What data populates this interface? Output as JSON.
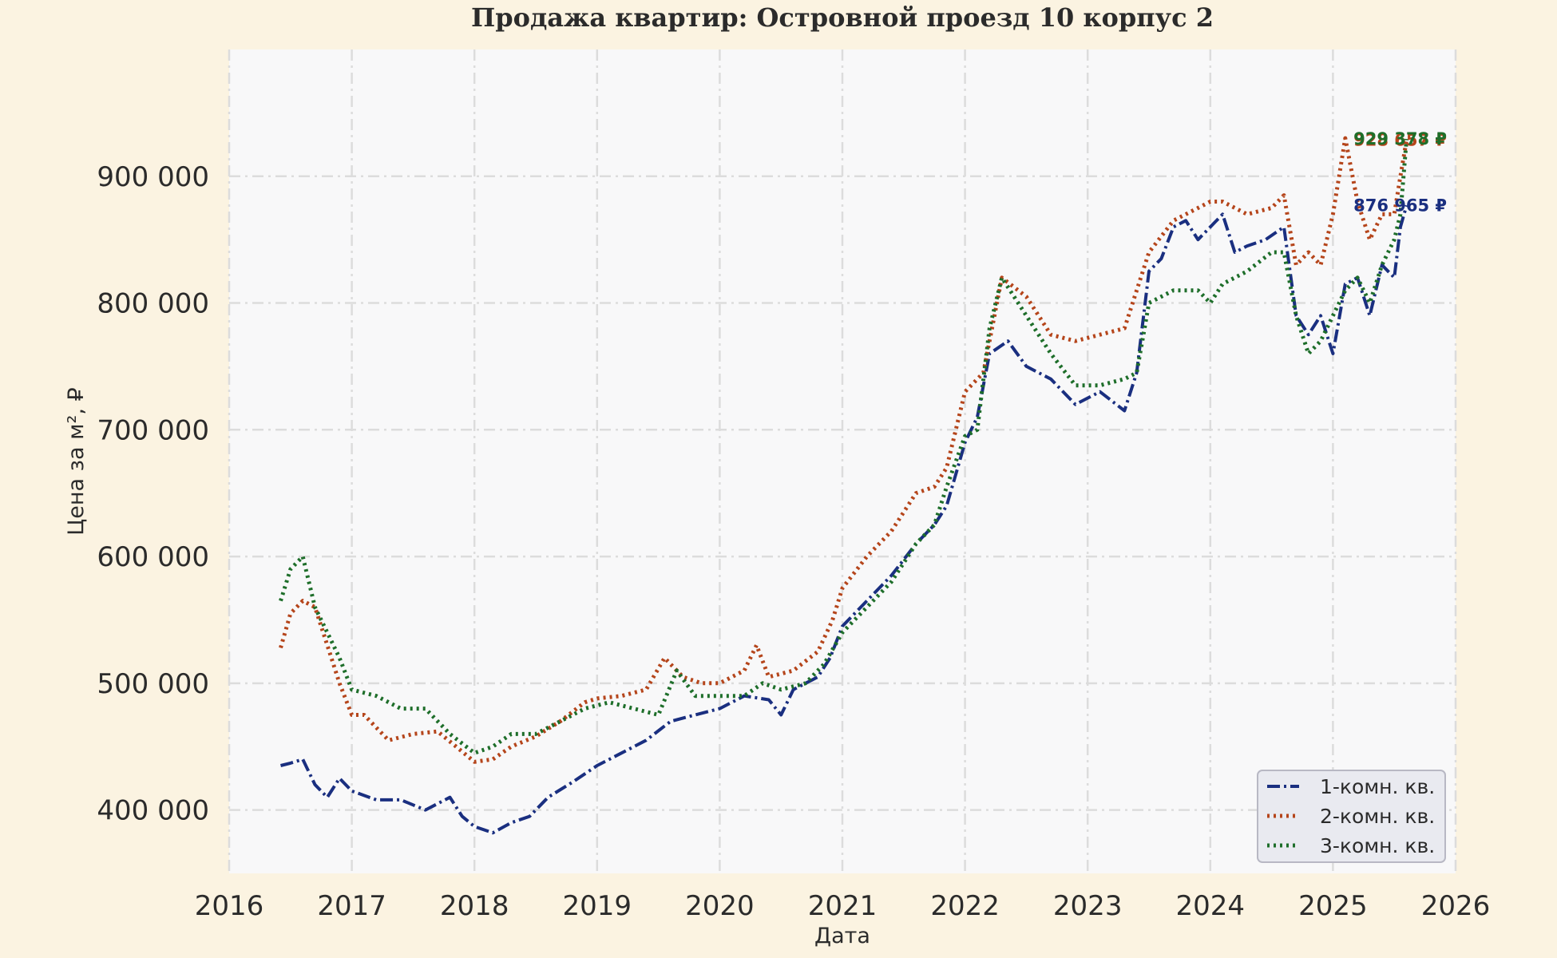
{
  "chart_data": {
    "type": "line",
    "title": "Продажа квартир: Островной проезд 10 корпус 2",
    "xlabel": "Дата",
    "ylabel": "Цена за м², ₽",
    "xlim": [
      2016,
      2026
    ],
    "ylim": [
      350000,
      1000000
    ],
    "x_ticks": [
      2016,
      2017,
      2018,
      2019,
      2020,
      2021,
      2022,
      2023,
      2024,
      2025,
      2026
    ],
    "x_tick_labels": [
      "2016",
      "2017",
      "2018",
      "2019",
      "2020",
      "2021",
      "2022",
      "2023",
      "2024",
      "2025",
      "2026"
    ],
    "y_ticks": [
      400000,
      500000,
      600000,
      700000,
      800000,
      900000
    ],
    "y_tick_labels": [
      "400 000",
      "500 000",
      "600 000",
      "700 000",
      "800 000",
      "900 000"
    ],
    "grid": true,
    "legend_position": "bottom-right",
    "series": [
      {
        "name": "1-комн. кв.",
        "color": "#1a2f80",
        "dash": "dashdot",
        "end_label": "876 965 ₽",
        "x": [
          2016.42,
          2016.5,
          2016.6,
          2016.7,
          2016.8,
          2016.9,
          2017.0,
          2017.2,
          2017.4,
          2017.6,
          2017.8,
          2017.9,
          2018.0,
          2018.15,
          2018.3,
          2018.45,
          2018.6,
          2018.8,
          2019.0,
          2019.2,
          2019.4,
          2019.6,
          2019.8,
          2020.0,
          2020.2,
          2020.4,
          2020.5,
          2020.6,
          2020.8,
          2020.9,
          2021.0,
          2021.2,
          2021.4,
          2021.6,
          2021.75,
          2021.85,
          2022.0,
          2022.1,
          2022.2,
          2022.35,
          2022.5,
          2022.7,
          2022.9,
          2023.1,
          2023.3,
          2023.4,
          2023.5,
          2023.6,
          2023.7,
          2023.8,
          2023.9,
          2024.0,
          2024.1,
          2024.2,
          2024.3,
          2024.45,
          2024.6,
          2024.7,
          2024.8,
          2024.9,
          2025.0,
          2025.1,
          2025.2,
          2025.3,
          2025.4,
          2025.5,
          2025.55,
          2025.6
        ],
        "values": [
          435000,
          437000,
          440000,
          420000,
          410000,
          425000,
          415000,
          408000,
          408000,
          400000,
          410000,
          395000,
          387000,
          382000,
          390000,
          395000,
          410000,
          422000,
          435000,
          445000,
          455000,
          470000,
          475000,
          480000,
          490000,
          487000,
          475000,
          495000,
          505000,
          520000,
          545000,
          565000,
          585000,
          610000,
          625000,
          640000,
          690000,
          710000,
          760000,
          770000,
          750000,
          740000,
          720000,
          730000,
          715000,
          745000,
          825000,
          835000,
          860000,
          865000,
          850000,
          860000,
          870000,
          840000,
          845000,
          850000,
          860000,
          790000,
          775000,
          790000,
          760000,
          815000,
          820000,
          790000,
          830000,
          820000,
          860000,
          876965
        ]
      },
      {
        "name": "2-комн. кв.",
        "color": "#b5451b",
        "dash": "dotted",
        "end_label": "928 657 ₽",
        "x": [
          2016.42,
          2016.5,
          2016.6,
          2016.7,
          2016.8,
          2016.9,
          2017.0,
          2017.1,
          2017.3,
          2017.5,
          2017.7,
          2017.85,
          2018.0,
          2018.15,
          2018.3,
          2018.5,
          2018.7,
          2018.9,
          2019.0,
          2019.2,
          2019.4,
          2019.55,
          2019.7,
          2019.85,
          2020.0,
          2020.2,
          2020.3,
          2020.4,
          2020.6,
          2020.8,
          2020.92,
          2021.0,
          2021.2,
          2021.4,
          2021.6,
          2021.75,
          2021.85,
          2022.0,
          2022.15,
          2022.3,
          2022.5,
          2022.7,
          2022.9,
          2023.1,
          2023.3,
          2023.4,
          2023.5,
          2023.7,
          2023.9,
          2024.0,
          2024.1,
          2024.3,
          2024.5,
          2024.6,
          2024.7,
          2024.8,
          2024.9,
          2025.0,
          2025.1,
          2025.2,
          2025.3,
          2025.4,
          2025.5,
          2025.55,
          2025.6
        ],
        "values": [
          528000,
          555000,
          565000,
          560000,
          530000,
          500000,
          475000,
          475000,
          455000,
          460000,
          462000,
          450000,
          438000,
          440000,
          450000,
          458000,
          470000,
          485000,
          488000,
          490000,
          495000,
          520000,
          505000,
          500000,
          500000,
          510000,
          530000,
          505000,
          510000,
          525000,
          550000,
          575000,
          600000,
          620000,
          650000,
          655000,
          670000,
          730000,
          745000,
          820000,
          805000,
          775000,
          770000,
          775000,
          780000,
          810000,
          840000,
          865000,
          875000,
          880000,
          880000,
          870000,
          875000,
          885000,
          830000,
          840000,
          830000,
          870000,
          930000,
          880000,
          850000,
          870000,
          870000,
          900000,
          928657
        ]
      },
      {
        "name": "3-комн. кв.",
        "color": "#1e6e2a",
        "dash": "dotted",
        "end_label": "929 378 ₽",
        "x": [
          2016.42,
          2016.5,
          2016.6,
          2016.7,
          2016.8,
          2016.9,
          2017.0,
          2017.2,
          2017.4,
          2017.6,
          2017.8,
          2018.0,
          2018.15,
          2018.3,
          2018.5,
          2018.7,
          2018.9,
          2019.1,
          2019.3,
          2019.5,
          2019.65,
          2019.8,
          2020.0,
          2020.2,
          2020.35,
          2020.5,
          2020.7,
          2020.85,
          2021.0,
          2021.2,
          2021.4,
          2021.6,
          2021.75,
          2021.85,
          2022.0,
          2022.1,
          2022.2,
          2022.3,
          2022.5,
          2022.7,
          2022.9,
          2023.1,
          2023.3,
          2023.4,
          2023.5,
          2023.7,
          2023.9,
          2024.0,
          2024.1,
          2024.3,
          2024.5,
          2024.6,
          2024.7,
          2024.8,
          2024.9,
          2025.0,
          2025.1,
          2025.2,
          2025.3,
          2025.4,
          2025.5,
          2025.55,
          2025.6
        ],
        "values": [
          565000,
          590000,
          600000,
          560000,
          540000,
          520000,
          495000,
          490000,
          480000,
          480000,
          460000,
          445000,
          450000,
          460000,
          460000,
          470000,
          480000,
          485000,
          480000,
          475000,
          510000,
          490000,
          490000,
          490000,
          500000,
          495000,
          500000,
          515000,
          540000,
          560000,
          580000,
          610000,
          625000,
          655000,
          695000,
          700000,
          780000,
          820000,
          790000,
          760000,
          735000,
          735000,
          740000,
          745000,
          800000,
          810000,
          810000,
          800000,
          815000,
          825000,
          840000,
          840000,
          790000,
          760000,
          770000,
          790000,
          810000,
          820000,
          800000,
          830000,
          850000,
          870000,
          929378
        ]
      }
    ]
  }
}
